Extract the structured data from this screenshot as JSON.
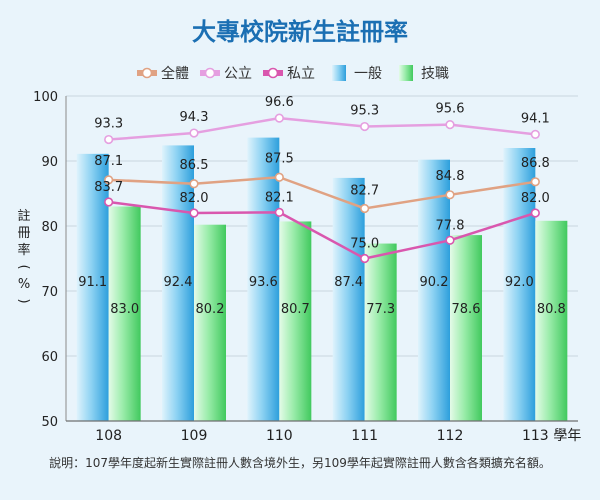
{
  "colors": {
    "all": "#e0a283",
    "public": "#e59fe0",
    "private": "#d957ae",
    "general": "#4fb4e6",
    "vocational": "#66dc7f",
    "title": "#1b6fb3"
  },
  "chart_data": {
    "type": "bar",
    "title": "大專校院新生註冊率",
    "categories": [
      "108",
      "109",
      "110",
      "111",
      "112",
      "113"
    ],
    "x_unit": "學年",
    "ylabel_chars": [
      "註",
      "冊",
      "率",
      "(",
      "%",
      ")"
    ],
    "ylim": [
      50,
      100
    ],
    "yticks": [
      50,
      60,
      70,
      80,
      90,
      100
    ],
    "series": [
      {
        "key": "general",
        "name": "一般",
        "kind": "bar",
        "values": [
          91.1,
          92.4,
          93.6,
          87.4,
          90.2,
          92.0
        ],
        "labels": [
          "91.1",
          "92.4",
          "93.6",
          "87.4",
          "90.2",
          "92.0"
        ]
      },
      {
        "key": "vocational",
        "name": "技職",
        "kind": "bar",
        "values": [
          83.0,
          80.2,
          80.7,
          77.3,
          78.6,
          80.8
        ],
        "labels": [
          "83.0",
          "80.2",
          "80.7",
          "77.3",
          "78.6",
          "80.8"
        ]
      },
      {
        "key": "all",
        "name": "全體",
        "kind": "line",
        "values": [
          87.1,
          86.5,
          87.5,
          82.7,
          84.8,
          86.8
        ],
        "labels": [
          "87.1",
          "86.5",
          "87.5",
          "82.7",
          "84.8",
          "86.8"
        ]
      },
      {
        "key": "public",
        "name": "公立",
        "kind": "line",
        "values": [
          93.3,
          94.3,
          96.6,
          95.3,
          95.6,
          94.1
        ],
        "labels": [
          "93.3",
          "94.3",
          "96.6",
          "95.3",
          "95.6",
          "94.1"
        ]
      },
      {
        "key": "private",
        "name": "私立",
        "kind": "line",
        "values": [
          83.7,
          82.0,
          82.1,
          75.0,
          77.8,
          82.0
        ],
        "labels": [
          "83.7",
          "82.0",
          "82.1",
          "75.0",
          "77.8",
          "82.0"
        ]
      }
    ],
    "legend_order": [
      "all",
      "public",
      "private",
      "general",
      "vocational"
    ],
    "note": "說明：107學年度起新生實際註冊人數含境外生，另109學年起實際註冊人數含各類擴充名額。"
  }
}
